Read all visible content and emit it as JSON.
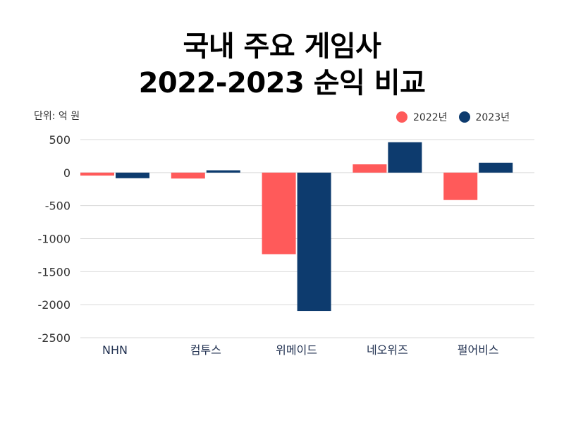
{
  "title": {
    "line1": "국내 주요 게임사",
    "line2": "2022-2023 순익 비교"
  },
  "unit_label": "단위: 억 원",
  "colors": {
    "series_2022": "#ff5a5a",
    "series_2023": "#0d3b6e",
    "grid": "#d9d9d9",
    "axis_text": "#333333",
    "category_text": "#1f2f4f"
  },
  "chart_data": {
    "type": "bar",
    "title": "국내 주요 게임사 2022-2023 순익 비교",
    "ylabel": "단위: 억 원",
    "xlabel": "",
    "categories": [
      "NHN",
      "컴투스",
      "위메이드",
      "네오위즈",
      "펄어비스"
    ],
    "series": [
      {
        "name": "2022년",
        "values": [
          -45,
          -90,
          -1235,
          125,
          -415
        ]
      },
      {
        "name": "2023년",
        "values": [
          -85,
          35,
          -2095,
          460,
          150
        ]
      }
    ],
    "ylim": [
      -2500,
      500
    ],
    "yticks": [
      500,
      0,
      -500,
      -1000,
      -1500,
      -2000,
      -2500
    ],
    "ytick_labels": [
      "500",
      "0",
      "-500",
      "-1000",
      "-1500",
      "-2000",
      "-2500"
    ],
    "grid": true,
    "legend_position": "top-right"
  }
}
